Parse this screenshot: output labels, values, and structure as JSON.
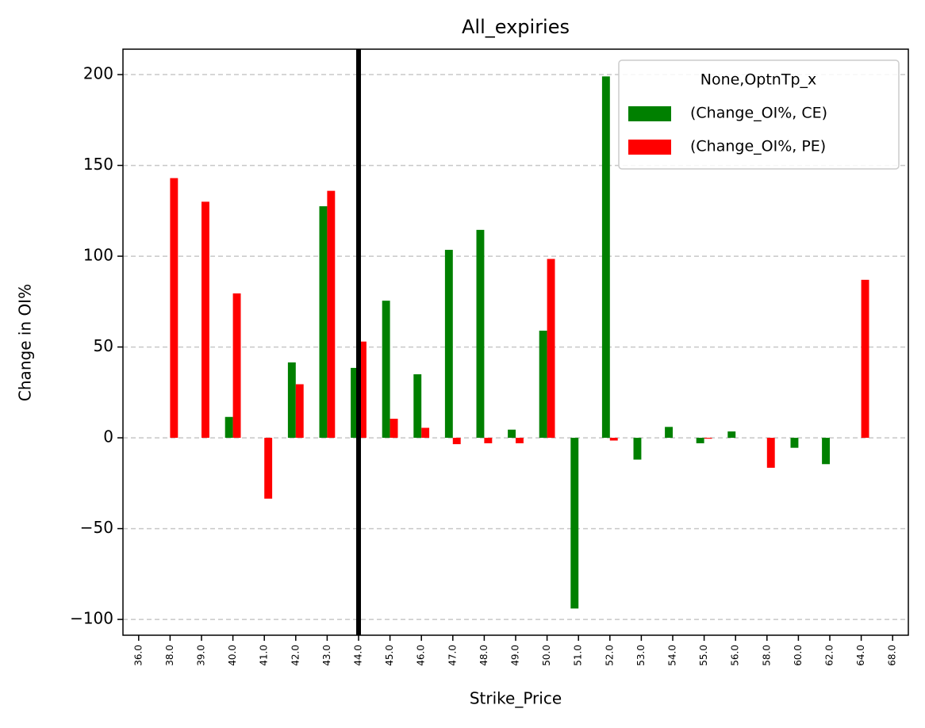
{
  "chart_data": {
    "type": "bar",
    "title": "All_expiries",
    "x_label": "Strike_Price",
    "y_label": "Change in OI%",
    "categories": [
      "36.0",
      "38.0",
      "39.0",
      "40.0",
      "41.0",
      "42.0",
      "43.0",
      "44.0",
      "45.0",
      "46.0",
      "47.0",
      "48.0",
      "49.0",
      "50.0",
      "51.0",
      "52.0",
      "53.0",
      "54.0",
      "55.0",
      "56.0",
      "58.0",
      "60.0",
      "62.0",
      "64.0",
      "68.0"
    ],
    "series": [
      {
        "name": "(Change_OI%, CE)",
        "color": "#008000",
        "values": [
          null,
          null,
          null,
          11.5,
          null,
          41.5,
          127.5,
          38.5,
          75.5,
          35,
          103.5,
          114.5,
          4.5,
          59,
          -94,
          199,
          -12,
          6,
          -3,
          3.5,
          null,
          -5.5,
          -14.5,
          null,
          null
        ]
      },
      {
        "name": "(Change_OI%, PE)",
        "color": "#ff0000",
        "values": [
          null,
          143,
          130,
          79.5,
          -33.5,
          29.5,
          136,
          53,
          10.5,
          5.5,
          -3.5,
          -3,
          -3,
          98.5,
          null,
          -1.5,
          null,
          null,
          -0.5,
          null,
          -16.5,
          null,
          null,
          87,
          null
        ]
      }
    ],
    "legend_title": "None,OptnTp_x",
    "legend": "upper right",
    "ylim": [
      -108.7,
      214
    ],
    "yticks": [
      {
        "value": -100,
        "label": "−100"
      },
      {
        "value": -50,
        "label": "−50"
      },
      0,
      50,
      100,
      150,
      200
    ],
    "grid": true,
    "vline_x": 7,
    "vline_color": "#000000"
  }
}
